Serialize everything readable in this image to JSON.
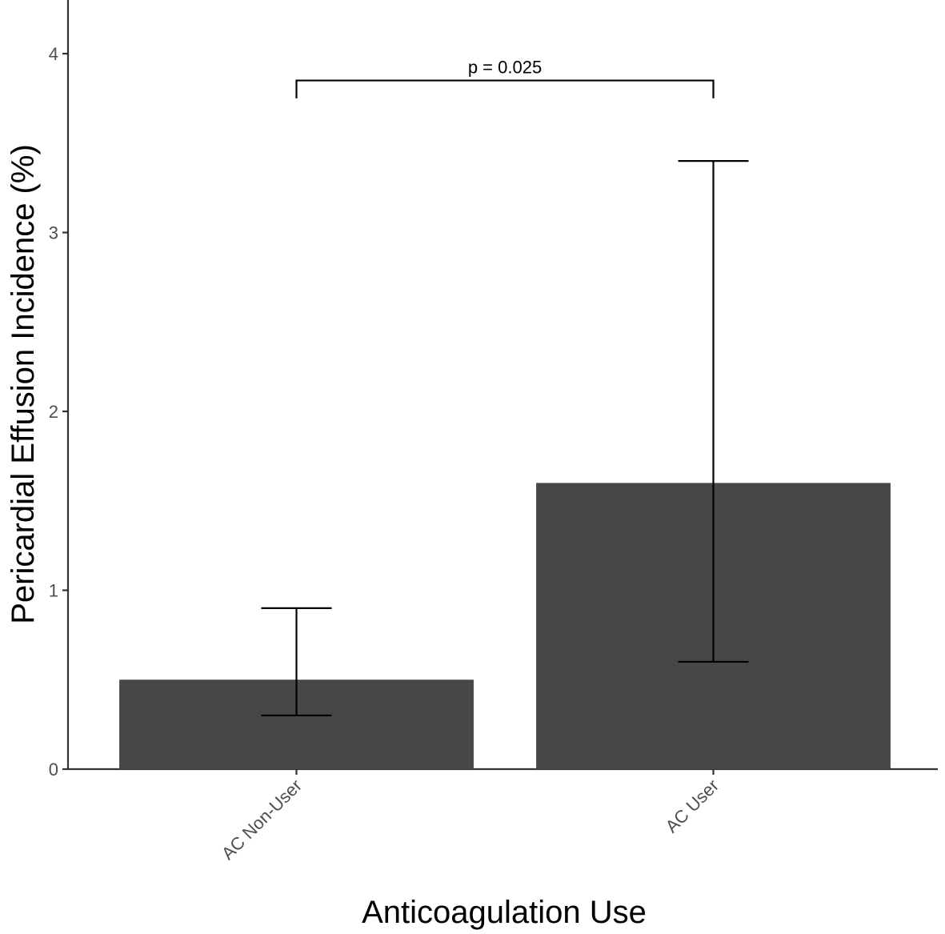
{
  "chart_data": {
    "type": "bar",
    "categories": [
      "AC Non-User",
      "AC User"
    ],
    "values": [
      0.5,
      1.6
    ],
    "error_bars": [
      {
        "lower": 0.3,
        "upper": 0.9
      },
      {
        "lower": 0.6,
        "upper": 3.4
      }
    ],
    "title": "",
    "xlabel": "Anticoagulation Use",
    "ylabel": "Pericardial Effusion Incidence (%)",
    "ylim": [
      0,
      4.3
    ],
    "yticks": [
      "0",
      "1",
      "2",
      "3",
      "4"
    ],
    "grid": false,
    "bar_color": "#474747",
    "annotation": {
      "text": "p = 0.025",
      "from": "AC Non-User",
      "to": "AC User",
      "y": 3.85,
      "drop_to": 3.75
    }
  }
}
